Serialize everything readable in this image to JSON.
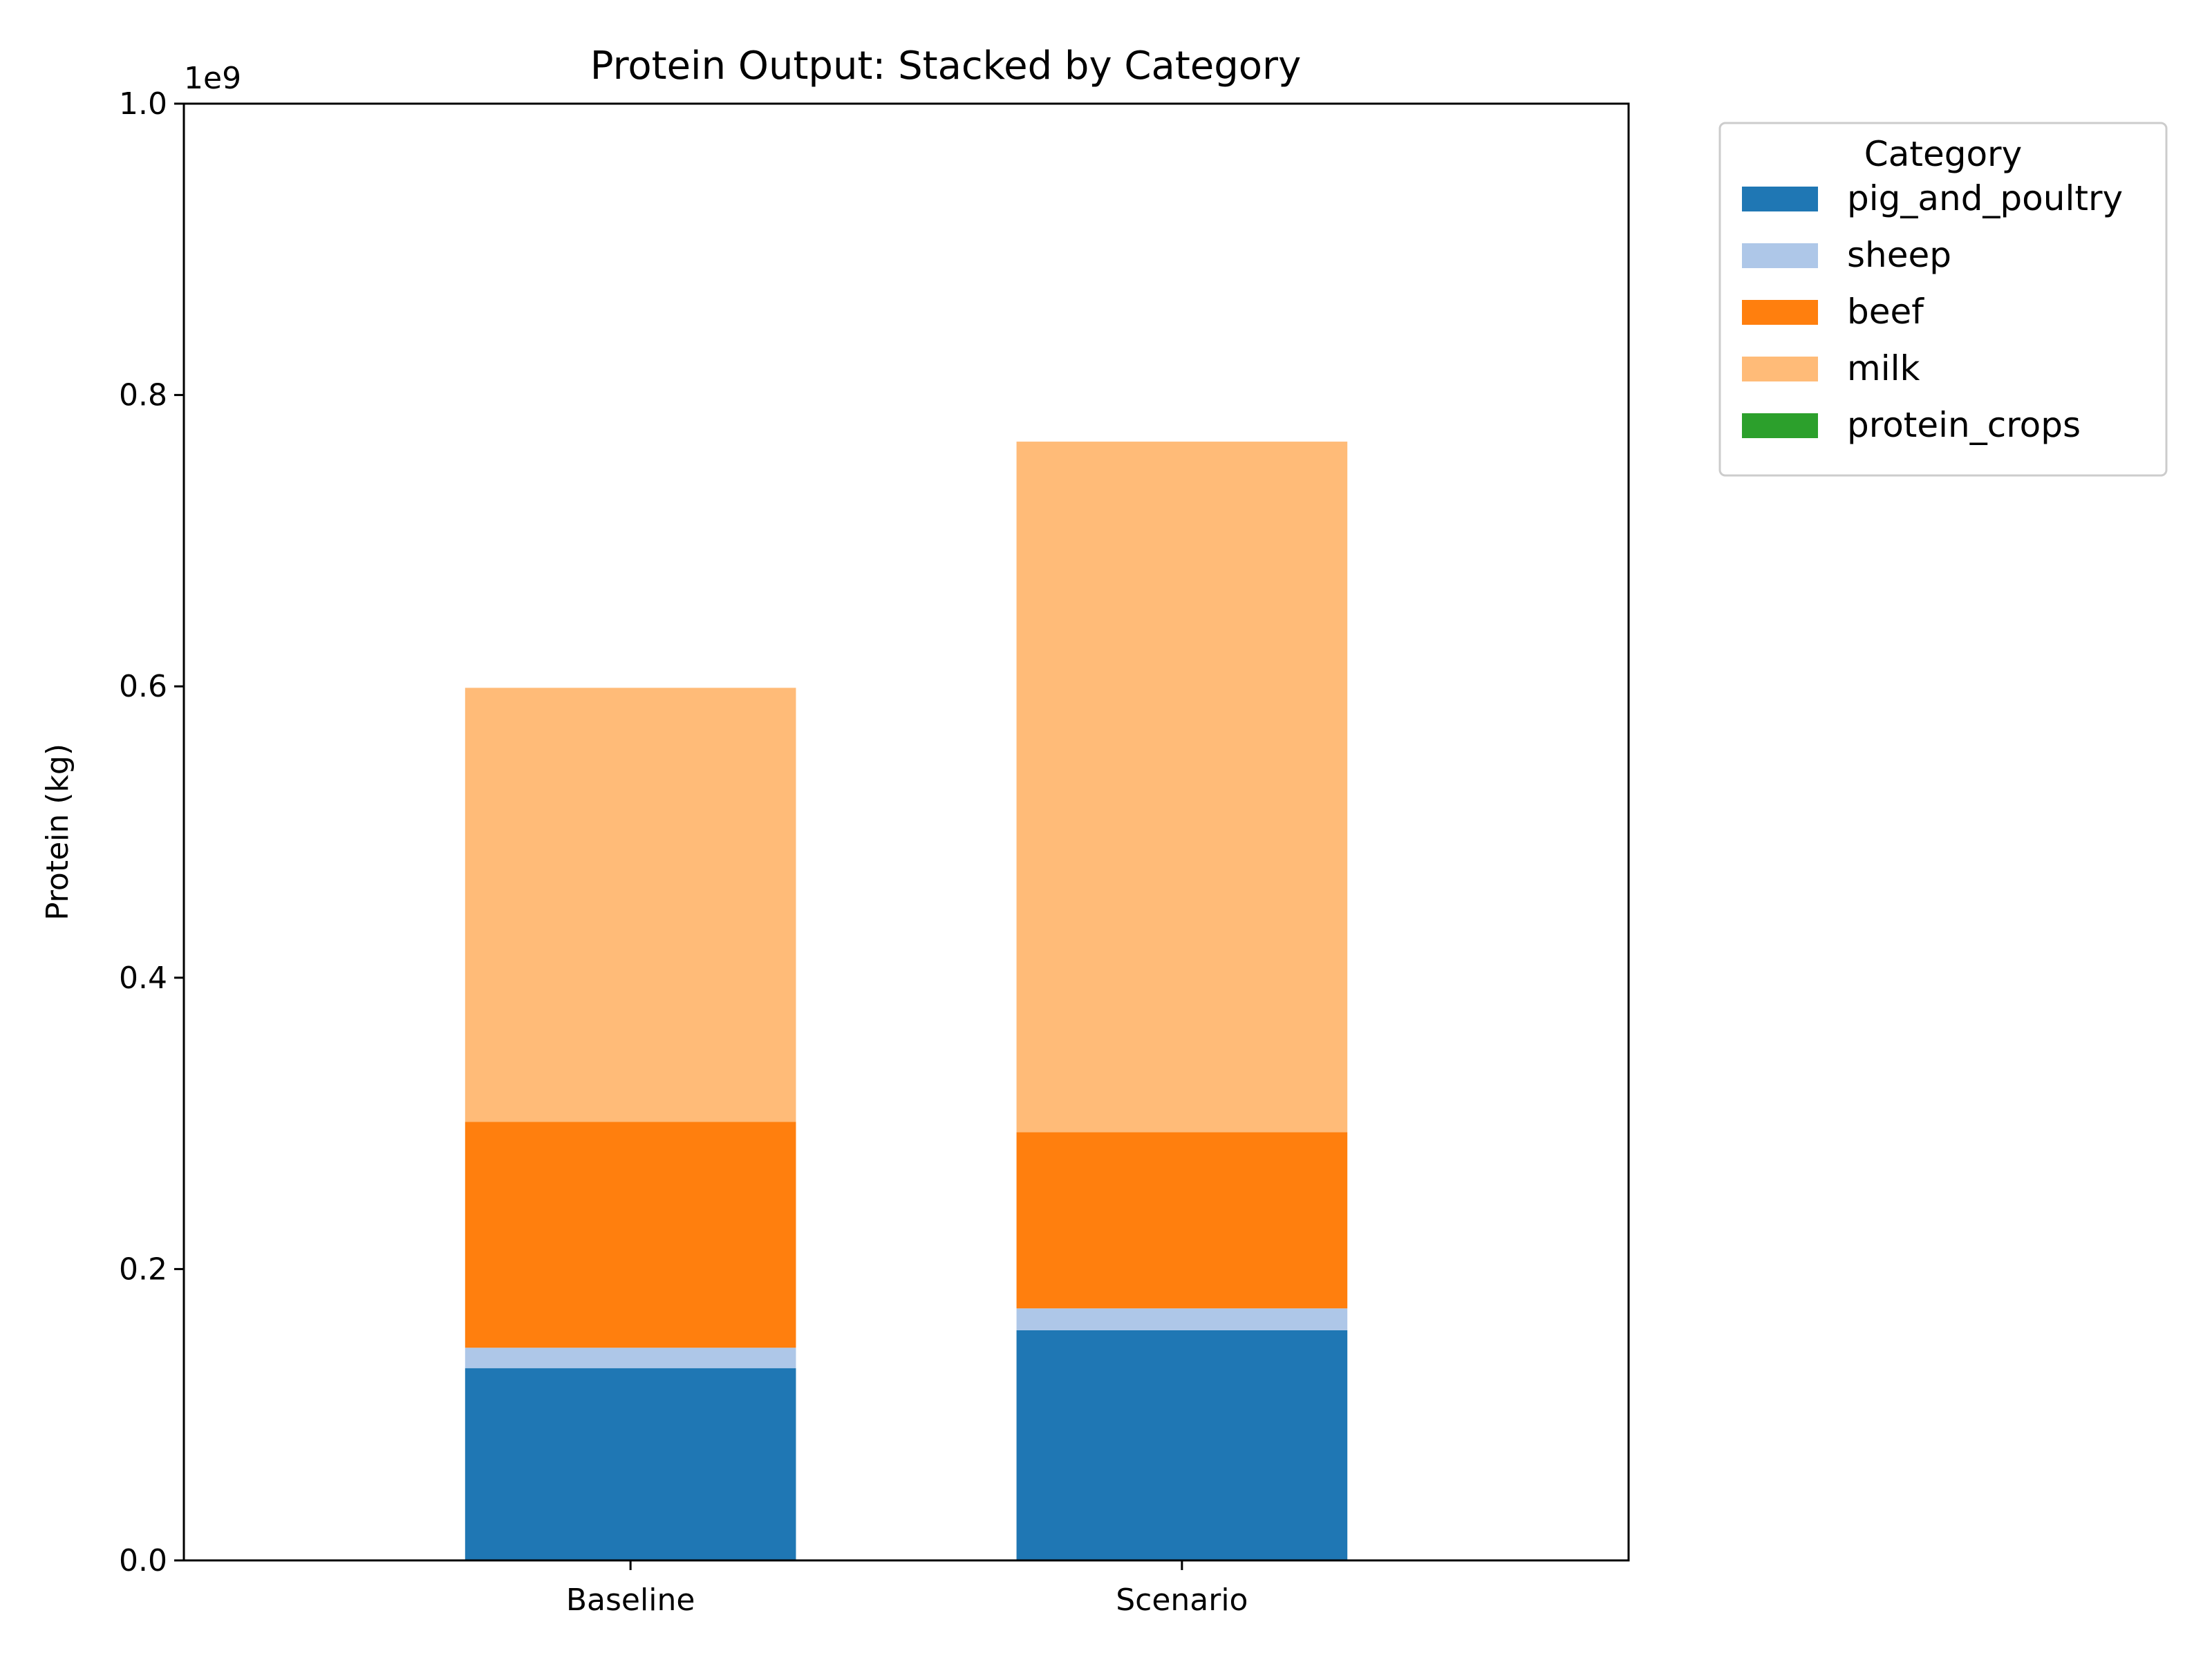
{
  "chart_data": {
    "type": "bar",
    "stacked": true,
    "title": "Protein Output: Stacked by Category",
    "xlabel": "",
    "ylabel": "Protein (kg)",
    "y_offset_text": "1e9",
    "ylim": [
      0,
      1.0
    ],
    "y_ticks": [
      0.0,
      0.2,
      0.4,
      0.6,
      0.8,
      1.0
    ],
    "y_tick_labels": [
      "0.0",
      "0.2",
      "0.4",
      "0.6",
      "0.8",
      "1.0"
    ],
    "categories": [
      "Baseline",
      "Scenario"
    ],
    "series": [
      {
        "name": "pig_and_poultry",
        "color": "#1f77b4",
        "values": [
          0.132,
          0.158
        ]
      },
      {
        "name": "sheep",
        "color": "#aec7e8",
        "values": [
          0.014,
          0.015
        ]
      },
      {
        "name": "beef",
        "color": "#ff7f0e",
        "values": [
          0.155,
          0.121
        ]
      },
      {
        "name": "milk",
        "color": "#ffbb78",
        "values": [
          0.298,
          0.474
        ]
      },
      {
        "name": "protein_crops",
        "color": "#2ca02c",
        "values": [
          0.0,
          0.0
        ]
      }
    ],
    "legend": {
      "title": "Category",
      "placement": "outside-right-top"
    },
    "grid": false
  }
}
